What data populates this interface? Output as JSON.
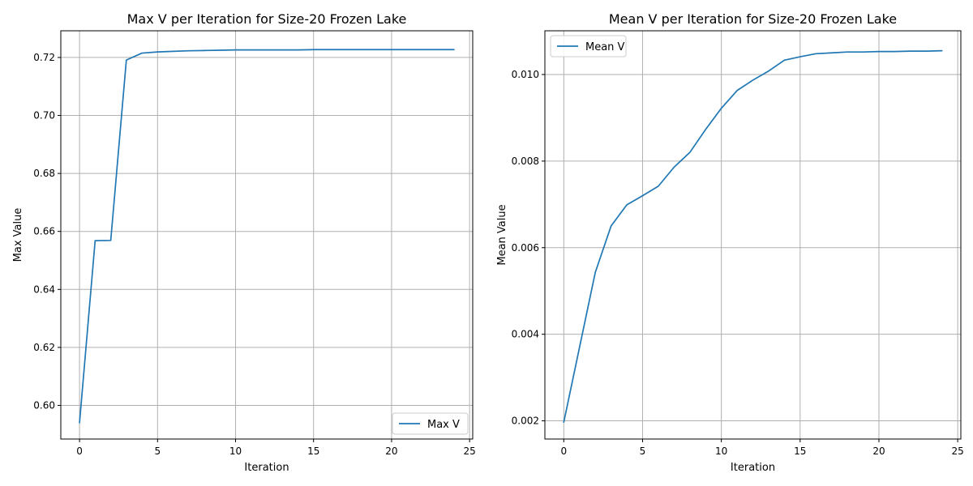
{
  "chart_data": [
    {
      "type": "line",
      "title": "Max V per Iteration for Size-20 Frozen Lake",
      "xlabel": "Iteration",
      "ylabel": "Max Value",
      "xlim": [
        -1.2,
        25.2
      ],
      "ylim": [
        0.5884,
        0.7292
      ],
      "xticks": [
        0,
        5,
        10,
        15,
        20,
        25
      ],
      "xtick_labels": [
        "0",
        "5",
        "10",
        "15",
        "20",
        "25"
      ],
      "yticks": [
        0.6,
        0.62,
        0.64,
        0.66,
        0.68,
        0.7,
        0.72
      ],
      "ytick_labels": [
        "0.60",
        "0.62",
        "0.64",
        "0.66",
        "0.68",
        "0.70",
        "0.72"
      ],
      "grid": true,
      "legend_position": "lower-right",
      "series": [
        {
          "name": "Max V",
          "color": "#1f77b4",
          "x": [
            0,
            1,
            2,
            3,
            4,
            5,
            6,
            7,
            8,
            9,
            10,
            11,
            12,
            13,
            14,
            15,
            16,
            17,
            18,
            19,
            20,
            21,
            22,
            23,
            24
          ],
          "y": [
            0.594,
            0.6568,
            0.6569,
            0.7191,
            0.7215,
            0.7219,
            0.7221,
            0.7223,
            0.7224,
            0.7225,
            0.7226,
            0.7226,
            0.7226,
            0.7226,
            0.7226,
            0.7227,
            0.7227,
            0.7227,
            0.7227,
            0.7227,
            0.7227,
            0.7227,
            0.7227,
            0.7227,
            0.7227
          ]
        }
      ]
    },
    {
      "type": "line",
      "title": "Mean V per Iteration for Size-20 Frozen Lake",
      "xlabel": "Iteration",
      "ylabel": "Mean Value",
      "xlim": [
        -1.2,
        25.2
      ],
      "ylim": [
        0.00158,
        0.01101
      ],
      "xticks": [
        0,
        5,
        10,
        15,
        20,
        25
      ],
      "xtick_labels": [
        "0",
        "5",
        "10",
        "15",
        "20",
        "25"
      ],
      "yticks": [
        0.002,
        0.004,
        0.006,
        0.008,
        0.01
      ],
      "ytick_labels": [
        "0.002",
        "0.004",
        "0.006",
        "0.008",
        "0.010"
      ],
      "grid": true,
      "legend_position": "upper-left",
      "series": [
        {
          "name": "Mean V",
          "color": "#1f77b4",
          "x": [
            0,
            1,
            2,
            3,
            4,
            5,
            6,
            7,
            8,
            9,
            10,
            11,
            12,
            13,
            14,
            15,
            16,
            17,
            18,
            19,
            20,
            21,
            22,
            23,
            24
          ],
          "y": [
            0.00197,
            0.0037,
            0.00543,
            0.0065,
            0.00699,
            0.0072,
            0.00742,
            0.00786,
            0.0082,
            0.00873,
            0.00922,
            0.00963,
            0.00987,
            0.01008,
            0.01033,
            0.01041,
            0.01048,
            0.0105,
            0.01052,
            0.01052,
            0.01053,
            0.01053,
            0.01054,
            0.01054,
            0.01055
          ]
        }
      ]
    }
  ]
}
